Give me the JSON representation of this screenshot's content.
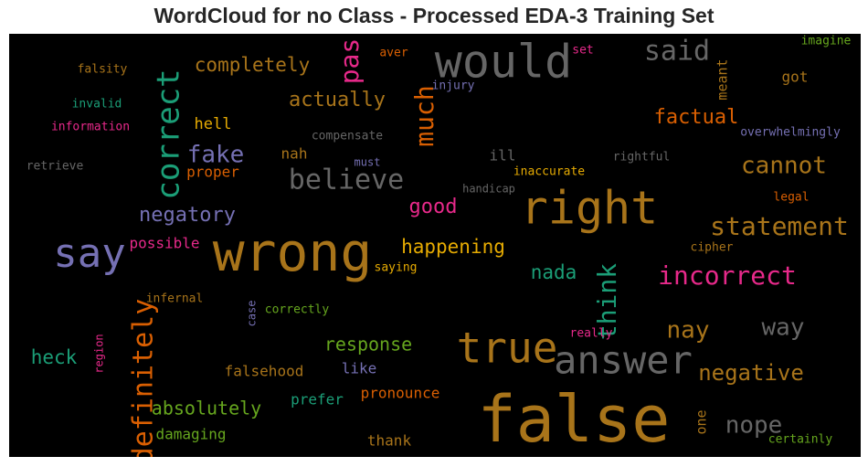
{
  "title": "WordCloud for no Class - Processed EDA-3 Training Set",
  "chart_data": {
    "type": "wordcloud",
    "background": "#000000",
    "words": [
      {
        "text": "false",
        "color": "#a8741a",
        "size": 70
      },
      {
        "text": "wrong",
        "color": "#a8741a",
        "size": 58
      },
      {
        "text": "right",
        "color": "#a8741a",
        "size": 50
      },
      {
        "text": "would",
        "color": "#666666",
        "size": 50
      },
      {
        "text": "true",
        "color": "#a8741a",
        "size": 46
      },
      {
        "text": "say",
        "color": "#7570b3",
        "size": 44
      },
      {
        "text": "answer",
        "color": "#666666",
        "size": 42
      },
      {
        "text": "correct",
        "color": "#1b9e77",
        "size": 34
      },
      {
        "text": "definitely",
        "color": "#d95f02",
        "size": 30
      },
      {
        "text": "said",
        "color": "#666666",
        "size": 30
      },
      {
        "text": "believe",
        "color": "#666666",
        "size": 30
      },
      {
        "text": "pas",
        "color": "#e7298a",
        "size": 28
      },
      {
        "text": "much",
        "color": "#d95f02",
        "size": 28
      },
      {
        "text": "think",
        "color": "#1b9e77",
        "size": 28
      },
      {
        "text": "statement",
        "color": "#a8741a",
        "size": 28
      },
      {
        "text": "incorrect",
        "color": "#e7298a",
        "size": 28
      },
      {
        "text": "fake",
        "color": "#7570b3",
        "size": 26
      },
      {
        "text": "cannot",
        "color": "#a8741a",
        "size": 26
      },
      {
        "text": "way",
        "color": "#666666",
        "size": 26
      },
      {
        "text": "nay",
        "color": "#a8741a",
        "size": 26
      },
      {
        "text": "nope",
        "color": "#666666",
        "size": 26
      },
      {
        "text": "negative",
        "color": "#a8741a",
        "size": 24
      },
      {
        "text": "actually",
        "color": "#a8741a",
        "size": 22
      },
      {
        "text": "completely",
        "color": "#a8741a",
        "size": 21
      },
      {
        "text": "factual",
        "color": "#d95f02",
        "size": 22
      },
      {
        "text": "negatory",
        "color": "#7570b3",
        "size": 22
      },
      {
        "text": "good",
        "color": "#e7298a",
        "size": 22
      },
      {
        "text": "happening",
        "color": "#e6ab02",
        "size": 21
      },
      {
        "text": "nada",
        "color": "#1b9e77",
        "size": 21
      },
      {
        "text": "heck",
        "color": "#1b9e77",
        "size": 21
      },
      {
        "text": "response",
        "color": "#66a61e",
        "size": 20
      },
      {
        "text": "absolutely",
        "color": "#66a61e",
        "size": 20
      },
      {
        "text": "hell",
        "color": "#e6ab02",
        "size": 17
      },
      {
        "text": "nah",
        "color": "#a8741a",
        "size": 16
      },
      {
        "text": "proper",
        "color": "#d95f02",
        "size": 16
      },
      {
        "text": "possible",
        "color": "#e7298a",
        "size": 16
      },
      {
        "text": "falsehood",
        "color": "#a8741a",
        "size": 16
      },
      {
        "text": "like",
        "color": "#7570b3",
        "size": 16
      },
      {
        "text": "prefer",
        "color": "#1b9e77",
        "size": 16
      },
      {
        "text": "pronounce",
        "color": "#d95f02",
        "size": 16
      },
      {
        "text": "damaging",
        "color": "#66a61e",
        "size": 16
      },
      {
        "text": "thank",
        "color": "#a8741a",
        "size": 16
      },
      {
        "text": "got",
        "color": "#a8741a",
        "size": 16
      },
      {
        "text": "meant",
        "color": "#a8741a",
        "size": 15
      },
      {
        "text": "ill",
        "color": "#666666",
        "size": 16
      },
      {
        "text": "one",
        "color": "#a8741a",
        "size": 15
      },
      {
        "text": "falsity",
        "color": "#a8741a",
        "size": 13
      },
      {
        "text": "invalid",
        "color": "#1b9e77",
        "size": 13
      },
      {
        "text": "information",
        "color": "#e7298a",
        "size": 13
      },
      {
        "text": "retrieve",
        "color": "#666666",
        "size": 13
      },
      {
        "text": "aver",
        "color": "#d95f02",
        "size": 13
      },
      {
        "text": "injury",
        "color": "#7570b3",
        "size": 13
      },
      {
        "text": "set",
        "color": "#e7298a",
        "size": 13
      },
      {
        "text": "imagine",
        "color": "#66a61e",
        "size": 13
      },
      {
        "text": "compensate",
        "color": "#666666",
        "size": 13
      },
      {
        "text": "must",
        "color": "#7570b3",
        "size": 12
      },
      {
        "text": "handicap",
        "color": "#666666",
        "size": 12
      },
      {
        "text": "inaccurate",
        "color": "#e6ab02",
        "size": 13
      },
      {
        "text": "rightful",
        "color": "#666666",
        "size": 13
      },
      {
        "text": "overwhelmingly",
        "color": "#7570b3",
        "size": 13
      },
      {
        "text": "legal",
        "color": "#d95f02",
        "size": 13
      },
      {
        "text": "cipher",
        "color": "#a8741a",
        "size": 13
      },
      {
        "text": "saying",
        "color": "#e6ab02",
        "size": 13
      },
      {
        "text": "infernal",
        "color": "#a8741a",
        "size": 13
      },
      {
        "text": "case",
        "color": "#7570b3",
        "size": 12
      },
      {
        "text": "correctly",
        "color": "#66a61e",
        "size": 13
      },
      {
        "text": "region",
        "color": "#e7298a",
        "size": 12
      },
      {
        "text": "really",
        "color": "#e7298a",
        "size": 13
      },
      {
        "text": "certainly",
        "color": "#66a61e",
        "size": 13
      }
    ]
  }
}
